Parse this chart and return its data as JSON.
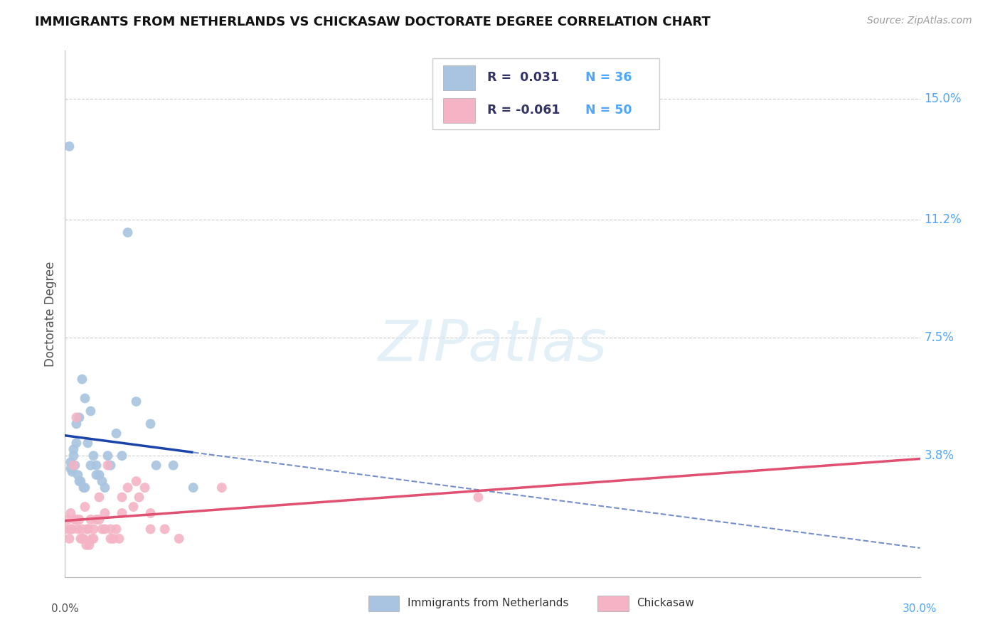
{
  "title": "IMMIGRANTS FROM NETHERLANDS VS CHICKASAW DOCTORATE DEGREE CORRELATION CHART",
  "source": "Source: ZipAtlas.com",
  "ylabel": "Doctorate Degree",
  "xlim": [
    0,
    30
  ],
  "ylim": [
    0,
    16.5
  ],
  "yticks": [
    0,
    3.8,
    7.5,
    11.2,
    15.0
  ],
  "ytick_labels": [
    "",
    "3.8%",
    "7.5%",
    "11.2%",
    "15.0%"
  ],
  "background_color": "#ffffff",
  "blue_series": {
    "name": "Immigrants from Netherlands",
    "color": "#a8c4e0",
    "line_color": "#1a44aa",
    "R": 0.031,
    "N": 36,
    "x": [
      0.15,
      0.2,
      0.25,
      0.3,
      0.35,
      0.4,
      0.45,
      0.5,
      0.55,
      0.6,
      0.65,
      0.7,
      0.8,
      0.9,
      1.0,
      1.1,
      1.2,
      1.3,
      1.4,
      1.6,
      1.8,
      2.0,
      2.5,
      3.0,
      3.8,
      4.5,
      0.2,
      0.3,
      0.4,
      0.5,
      0.7,
      0.9,
      1.1,
      1.5,
      2.2,
      3.2
    ],
    "y": [
      13.5,
      3.6,
      3.3,
      4.0,
      3.5,
      4.8,
      3.2,
      5.0,
      3.0,
      6.2,
      2.8,
      5.6,
      4.2,
      5.2,
      3.8,
      3.5,
      3.2,
      3.0,
      2.8,
      3.5,
      4.5,
      3.8,
      5.5,
      4.8,
      3.5,
      2.8,
      3.4,
      3.8,
      4.2,
      3.0,
      2.8,
      3.5,
      3.2,
      3.8,
      10.8,
      3.5
    ]
  },
  "pink_series": {
    "name": "Chickasaw",
    "color": "#f4b4c5",
    "line_color": "#e05070",
    "R": -0.061,
    "N": 50,
    "x": [
      0.05,
      0.1,
      0.15,
      0.2,
      0.25,
      0.3,
      0.35,
      0.4,
      0.45,
      0.5,
      0.55,
      0.6,
      0.65,
      0.7,
      0.75,
      0.8,
      0.85,
      0.9,
      0.95,
      1.0,
      1.1,
      1.2,
      1.3,
      1.4,
      1.5,
      1.6,
      1.7,
      1.8,
      1.9,
      2.0,
      2.2,
      2.4,
      2.6,
      2.8,
      3.0,
      3.5,
      4.0,
      0.2,
      0.4,
      0.6,
      0.8,
      1.0,
      1.2,
      1.4,
      1.6,
      2.0,
      2.5,
      3.0,
      14.5,
      5.5
    ],
    "y": [
      1.5,
      1.8,
      1.2,
      2.0,
      1.5,
      3.5,
      1.8,
      5.0,
      1.5,
      1.8,
      1.2,
      1.5,
      1.2,
      2.2,
      1.0,
      1.5,
      1.0,
      1.8,
      1.2,
      1.5,
      1.8,
      2.5,
      1.5,
      2.0,
      3.5,
      1.5,
      1.2,
      1.5,
      1.2,
      2.0,
      2.8,
      2.2,
      2.5,
      2.8,
      2.0,
      1.5,
      1.2,
      1.5,
      1.8,
      1.2,
      1.5,
      1.2,
      1.8,
      1.5,
      1.2,
      2.5,
      3.0,
      1.5,
      2.5,
      2.8
    ]
  }
}
